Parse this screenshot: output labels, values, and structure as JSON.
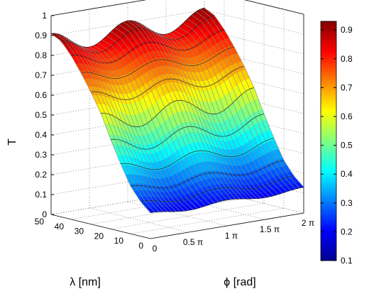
{
  "chart_data": {
    "type": "surface",
    "title": "",
    "zlabel": "T",
    "xlabel": "λ [nm]",
    "ylabel": "ϕ [rad]",
    "x_ticks": [
      "0",
      "10",
      "20",
      "30",
      "40",
      "50"
    ],
    "x_tick_values": [
      0,
      10,
      20,
      30,
      40,
      50
    ],
    "xlim": [
      0,
      50
    ],
    "y_ticks": [
      "0",
      "0.5 π",
      "1 π",
      "1.5 π",
      "2 π"
    ],
    "y_tick_values": [
      0,
      1.5708,
      3.1416,
      4.7124,
      6.2832
    ],
    "ylim": [
      0,
      6.2832
    ],
    "z_ticks": [
      "0",
      "0.1",
      "0.2",
      "0.3",
      "0.4",
      "0.5",
      "0.6",
      "0.7",
      "0.8",
      "0.9",
      "1"
    ],
    "z_tick_values": [
      0,
      0.1,
      0.2,
      0.3,
      0.4,
      0.5,
      0.6,
      0.7,
      0.8,
      0.9,
      1
    ],
    "zlim": [
      0,
      1
    ],
    "grid": true,
    "colormap": "jet",
    "colorbar": {
      "placement": "right",
      "ticks": [
        "0.1",
        "0.2",
        "0.3",
        "0.4",
        "0.5",
        "0.6",
        "0.7",
        "0.8",
        "0.9"
      ],
      "tick_values": [
        0.1,
        0.2,
        0.3,
        0.4,
        0.5,
        0.6,
        0.7,
        0.8,
        0.9
      ],
      "range": [
        0.1,
        0.93
      ]
    },
    "lambda_samples": [
      50,
      45,
      40,
      35,
      30,
      25,
      20,
      15,
      10,
      5,
      0
    ],
    "profile_T": [
      0.86,
      0.84,
      0.79,
      0.72,
      0.63,
      0.52,
      0.41,
      0.31,
      0.22,
      0.16,
      0.12
    ],
    "phi_ripple_amplitude": [
      0.05,
      0.045,
      0.035,
      0.03,
      0.035,
      0.05,
      0.04,
      0.03,
      0.02,
      0.015,
      0.01
    ]
  }
}
